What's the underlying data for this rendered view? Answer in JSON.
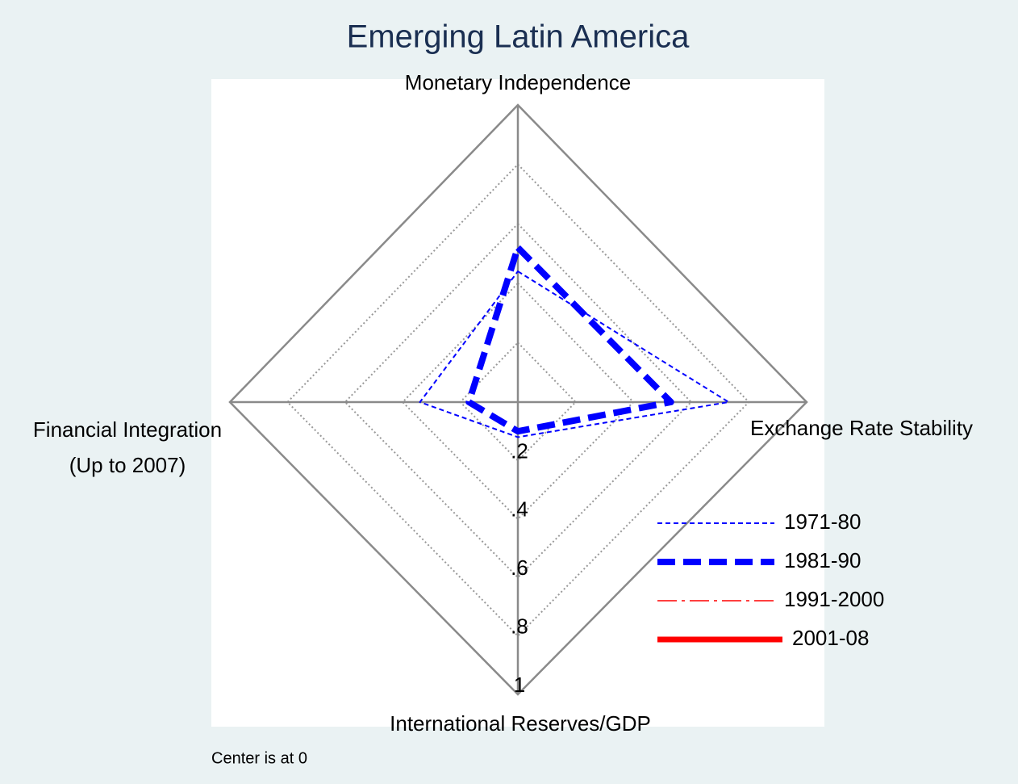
{
  "chart_data": {
    "type": "radar",
    "title": "Emerging Latin America",
    "categories": [
      [
        "Monetary Independence"
      ],
      [
        "Exchange Rate Stability"
      ],
      [
        "International Reserves/GDP"
      ],
      [
        "Financial Integration",
        "(Up to 2007)"
      ]
    ],
    "rlim": [
      0,
      1
    ],
    "rticks": [
      {
        "value": 0.2,
        "label": ".2"
      },
      {
        "value": 0.4,
        "label": ".4"
      },
      {
        "value": 0.6,
        "label": ".6"
      },
      {
        "value": 0.8,
        "label": ".8"
      },
      1
    ],
    "grid": true,
    "series": [
      {
        "name": "1971-80",
        "color": "#0000ff",
        "line_style": "dashed",
        "values": [
          0.44,
          0.73,
          0.12,
          0.34
        ]
      },
      {
        "name": "1981-90",
        "color": "#0000ff",
        "line_style": "thick-dashed",
        "values": [
          0.52,
          0.53,
          0.1,
          0.17
        ]
      },
      {
        "name": "1991-2000",
        "color": "#ff0000",
        "line_style": "dash-dot",
        "values": [
          null,
          null,
          null,
          null
        ]
      },
      {
        "name": "2001-08",
        "color": "#ff0000",
        "line_style": "thick-solid",
        "values": [
          null,
          null,
          null,
          null
        ]
      }
    ],
    "note": "Center is at 0"
  }
}
